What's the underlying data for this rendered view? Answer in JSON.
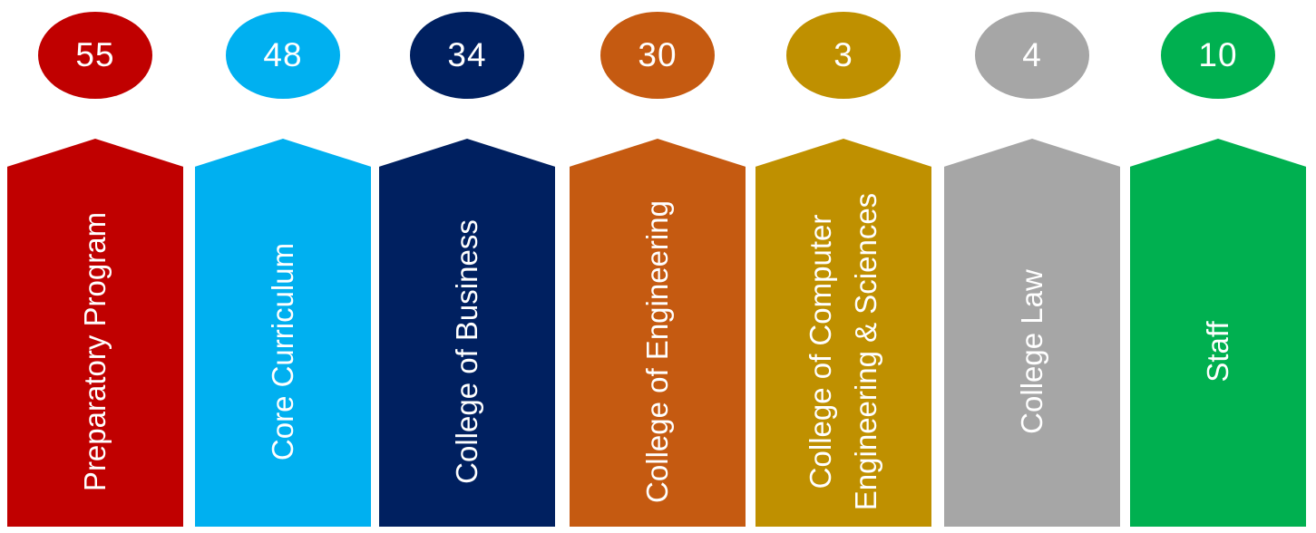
{
  "units": [
    {
      "value": "55",
      "label": "Preparatory Program",
      "color": "#C00000"
    },
    {
      "value": "48",
      "label": "Core Curriculum",
      "color": "#00B0F0"
    },
    {
      "value": "34",
      "label": "College of Business",
      "color": "#002060"
    },
    {
      "value": "30",
      "label": "College of Engineering",
      "color": "#C55A11"
    },
    {
      "value": "3",
      "label": "College of Computer\nEngineering & Sciences",
      "color": "#BF9000"
    },
    {
      "value": "4",
      "label": "College Law",
      "color": "#A6A6A6"
    },
    {
      "value": "10",
      "label": "Staff",
      "color": "#00B050"
    }
  ]
}
